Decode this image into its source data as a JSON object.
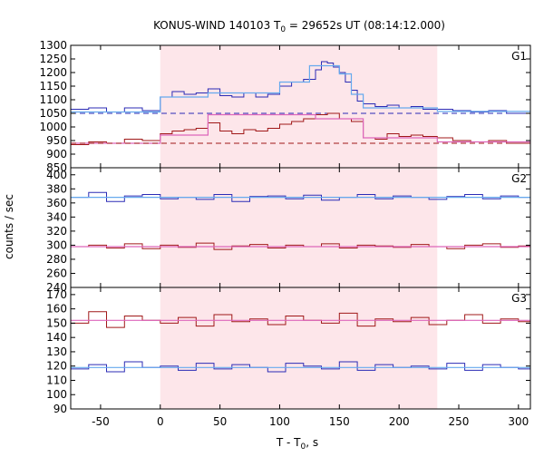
{
  "chart_data": {
    "type": "line",
    "title_prefix": "KONUS-WIND 140103 T",
    "title_sub": "0",
    "title_suffix": " = 29652s UT (08:14:12.000)",
    "xlabel_prefix": "T - T",
    "xlabel_sub": "0",
    "xlabel_suffix": ", s",
    "ylabel": "counts / sec",
    "xlim": [
      -75,
      310
    ],
    "xticks": [
      -50,
      0,
      50,
      100,
      150,
      200,
      250,
      300
    ],
    "shaded_interval": [
      0,
      232
    ],
    "colors": {
      "blue": "#2b2bb5",
      "lightblue": "#66aaee",
      "red": "#a01818",
      "pink": "#dd66bb",
      "shade": "#fde6ea"
    },
    "panels": [
      {
        "label": "G1",
        "ylim": [
          850,
          1300
        ],
        "yticks": [
          850,
          900,
          950,
          1000,
          1050,
          1100,
          1150,
          1200,
          1250,
          1300
        ],
        "series": [
          {
            "color": "blue",
            "x": [
              -75,
              -60,
              -45,
              -30,
              -15,
              0,
              10,
              20,
              30,
              40,
              50,
              60,
              70,
              80,
              90,
              100,
              110,
              120,
              130,
              135,
              140,
              145,
              150,
              155,
              160,
              165,
              170,
              180,
              190,
              200,
              210,
              220,
              232,
              245,
              260,
              275,
              290,
              310
            ],
            "y": [
              1065,
              1070,
              1055,
              1070,
              1060,
              1110,
              1130,
              1120,
              1125,
              1140,
              1115,
              1110,
              1125,
              1110,
              1120,
              1150,
              1165,
              1175,
              1210,
              1240,
              1235,
              1220,
              1200,
              1165,
              1135,
              1095,
              1085,
              1075,
              1080,
              1070,
              1075,
              1065,
              1065,
              1060,
              1055,
              1060,
              1050,
              1065
            ]
          },
          {
            "color": "lightblue",
            "x": [
              -75,
              0,
              0,
              40,
              40,
              100,
              100,
              125,
              125,
              150,
              150,
              160,
              160,
              170,
              170,
              232,
              232,
              310
            ],
            "y": [
              1055,
              1055,
              1110,
              1110,
              1125,
              1125,
              1165,
              1165,
              1225,
              1225,
              1195,
              1195,
              1120,
              1120,
              1070,
              1070,
              1057,
              1057
            ]
          },
          {
            "color": "blue",
            "dashed": true,
            "x": [
              -75,
              310
            ],
            "y": [
              1050,
              1050
            ]
          },
          {
            "color": "red",
            "x": [
              -75,
              -60,
              -45,
              -30,
              -15,
              0,
              10,
              20,
              30,
              40,
              50,
              60,
              70,
              80,
              90,
              100,
              110,
              120,
              130,
              140,
              150,
              160,
              170,
              180,
              190,
              200,
              210,
              220,
              232,
              245,
              260,
              275,
              290,
              310
            ],
            "y": [
              935,
              945,
              940,
              955,
              950,
              975,
              985,
              990,
              995,
              1015,
              985,
              975,
              990,
              985,
              995,
              1010,
              1020,
              1030,
              1045,
              1050,
              1030,
              1020,
              960,
              955,
              975,
              965,
              970,
              965,
              960,
              950,
              945,
              950,
              940,
              945
            ]
          },
          {
            "color": "pink",
            "x": [
              -75,
              0,
              0,
              40,
              40,
              130,
              130,
              170,
              170,
              232,
              232,
              310
            ],
            "y": [
              940,
              940,
              970,
              970,
              1045,
              1045,
              1030,
              1030,
              960,
              960,
              945,
              945
            ]
          },
          {
            "color": "red",
            "dashed": true,
            "x": [
              -75,
              310
            ],
            "y": [
              940,
              940
            ]
          }
        ]
      },
      {
        "label": "G2",
        "ylim": [
          240,
          410
        ],
        "yticks": [
          240,
          260,
          280,
          300,
          320,
          340,
          360,
          380,
          400
        ],
        "series": [
          {
            "color": "blue",
            "x": [
              -75,
              -60,
              -45,
              -30,
              -15,
              0,
              15,
              30,
              45,
              60,
              75,
              90,
              105,
              120,
              135,
              150,
              165,
              180,
              195,
              210,
              225,
              240,
              255,
              270,
              285,
              300,
              310
            ],
            "y": [
              368,
              375,
              362,
              370,
              372,
              366,
              368,
              365,
              372,
              362,
              369,
              370,
              366,
              371,
              364,
              368,
              372,
              366,
              370,
              368,
              365,
              369,
              372,
              366,
              370,
              368,
              369
            ]
          },
          {
            "color": "lightblue",
            "x": [
              -75,
              310
            ],
            "y": [
              368,
              368
            ]
          },
          {
            "color": "red",
            "x": [
              -75,
              -60,
              -45,
              -30,
              -15,
              0,
              15,
              30,
              45,
              60,
              75,
              90,
              105,
              120,
              135,
              150,
              165,
              180,
              195,
              210,
              225,
              240,
              255,
              270,
              285,
              300,
              310
            ],
            "y": [
              298,
              300,
              296,
              302,
              295,
              300,
              297,
              303,
              294,
              299,
              301,
              296,
              300,
              298,
              302,
              296,
              300,
              299,
              297,
              301,
              298,
              295,
              300,
              302,
              297,
              299,
              298
            ]
          },
          {
            "color": "pink",
            "x": [
              -75,
              310
            ],
            "y": [
              298,
              298
            ]
          }
        ]
      },
      {
        "label": "G3",
        "ylim": [
          90,
          175
        ],
        "yticks": [
          90,
          100,
          110,
          120,
          130,
          140,
          150,
          160,
          170
        ],
        "series": [
          {
            "color": "red",
            "x": [
              -75,
              -60,
              -45,
              -30,
              -15,
              0,
              15,
              30,
              45,
              60,
              75,
              90,
              105,
              120,
              135,
              150,
              165,
              180,
              195,
              210,
              225,
              240,
              255,
              270,
              285,
              300,
              310
            ],
            "y": [
              150,
              158,
              147,
              155,
              152,
              150,
              154,
              148,
              156,
              151,
              153,
              149,
              155,
              152,
              150,
              157,
              148,
              153,
              151,
              154,
              149,
              152,
              156,
              150,
              153,
              151,
              152
            ]
          },
          {
            "color": "pink",
            "x": [
              -75,
              310
            ],
            "y": [
              152,
              152
            ]
          },
          {
            "color": "blue",
            "x": [
              -75,
              -60,
              -45,
              -30,
              -15,
              0,
              15,
              30,
              45,
              60,
              75,
              90,
              105,
              120,
              135,
              150,
              165,
              180,
              195,
              210,
              225,
              240,
              255,
              270,
              285,
              300,
              310
            ],
            "y": [
              118,
              121,
              116,
              123,
              119,
              120,
              117,
              122,
              118,
              121,
              119,
              116,
              122,
              120,
              118,
              123,
              117,
              121,
              119,
              120,
              118,
              122,
              117,
              121,
              119,
              118,
              120
            ]
          },
          {
            "color": "lightblue",
            "x": [
              -75,
              310
            ],
            "y": [
              119,
              119
            ]
          }
        ]
      }
    ]
  }
}
